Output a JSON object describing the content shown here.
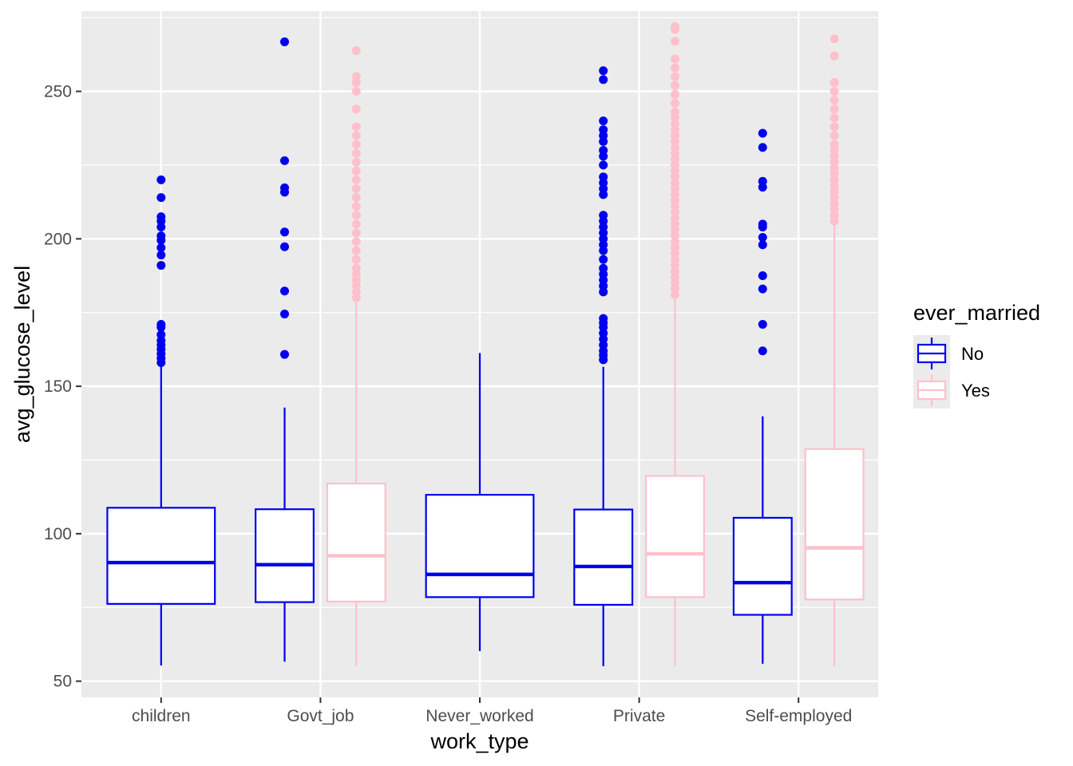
{
  "chart_data": {
    "type": "boxplot",
    "xlabel": "work_type",
    "ylabel": "avg_glucose_level",
    "categories": [
      "children",
      "Govt_job",
      "Never_worked",
      "Private",
      "Self-employed"
    ],
    "y_ticks": [
      50,
      100,
      150,
      200,
      250
    ],
    "y_tick_labels": [
      "50",
      "100",
      "150",
      "200",
      "250"
    ],
    "ylim": [
      44.5,
      277.2
    ],
    "grid": true,
    "legend": {
      "title": "ever_married",
      "position": "right",
      "entries": [
        {
          "label": "No",
          "color": "#0000ee"
        },
        {
          "label": "Yes",
          "color": "#ffc0cb"
        }
      ]
    },
    "series": [
      {
        "name": "No",
        "color": "#0000ee",
        "boxes": [
          {
            "category": "children",
            "lower_whisker": 55.3,
            "q1": 76.2,
            "median": 90.2,
            "q3": 108.8,
            "upper_whisker": 157.5,
            "outliers": [
              158,
              159.5,
              161,
              162.5,
              164,
              165.5,
              167.5,
              170,
              171,
              191,
              194.5,
              197,
              199.5,
              201,
              204,
              206,
              207.5,
              214,
              220
            ]
          },
          {
            "category": "Govt_job",
            "lower_whisker": 56.6,
            "q1": 76.8,
            "median": 89.5,
            "q3": 108.3,
            "upper_whisker": 142.8,
            "outliers": [
              160.8,
              174.5,
              182.3,
              197.3,
              202.3,
              215.8,
              217.3,
              226.5,
              266.8
            ]
          },
          {
            "category": "Never_worked",
            "lower_whisker": 60.2,
            "q1": 78.5,
            "median": 86.2,
            "q3": 113.2,
            "upper_whisker": 161.3,
            "outliers": []
          },
          {
            "category": "Private",
            "lower_whisker": 55.1,
            "q1": 75.9,
            "median": 88.9,
            "q3": 108.2,
            "upper_whisker": 156.6,
            "outliers": [
              159,
              160.5,
              162,
              164,
              166,
              168,
              170,
              171.5,
              173,
              182,
              184,
              186,
              188,
              190,
              193,
              196,
              198,
              200,
              202,
              204,
              206,
              208,
              215,
              217,
              219,
              221,
              225,
              228,
              230,
              233,
              235,
              237,
              240,
              254,
              257
            ]
          },
          {
            "category": "Self-employed",
            "lower_whisker": 55.9,
            "q1": 72.5,
            "median": 83.4,
            "q3": 105.4,
            "upper_whisker": 139.8,
            "outliers": [
              162,
              171,
              183,
              187.5,
              198,
              200.5,
              204,
              205,
              217.5,
              219.5,
              231,
              235.8
            ]
          }
        ]
      },
      {
        "name": "Yes",
        "color": "#ffc0cb",
        "boxes": [
          {
            "category": "Govt_job",
            "lower_whisker": 55.2,
            "q1": 77.0,
            "median": 92.5,
            "q3": 117.0,
            "upper_whisker": 178.5,
            "outliers": [
              180,
              182,
              184,
              186,
              188,
              190,
              193,
              196,
              199,
              202,
              205,
              208,
              211,
              214,
              217,
              220,
              223,
              226,
              229,
              232,
              235,
              238,
              244,
              250,
              253,
              255,
              263.8
            ]
          },
          {
            "category": "Private",
            "lower_whisker": 55.1,
            "q1": 78.5,
            "median": 93.2,
            "q3": 119.6,
            "upper_whisker": 179.5,
            "outliers": [
              181,
              183,
              185,
              187,
              189,
              191,
              193,
              195,
              197,
              199,
              201,
              203,
              205,
              207,
              209,
              211,
              213,
              215,
              217,
              219,
              221,
              223,
              225,
              227,
              229,
              231,
              233,
              235,
              237,
              239,
              241,
              243,
              246,
              249,
              252,
              255,
              258,
              261,
              267,
              271,
              272
            ]
          },
          {
            "category": "Self-employed",
            "lower_whisker": 55.1,
            "q1": 77.7,
            "median": 95.2,
            "q3": 128.7,
            "upper_whisker": 205.5,
            "outliers": [
              206,
              208,
              210,
              212,
              214,
              216,
              218,
              220,
              222,
              224,
              226,
              228,
              230,
              232,
              235,
              238,
              241,
              244,
              247,
              250,
              253,
              262,
              267.8
            ]
          }
        ]
      }
    ]
  }
}
